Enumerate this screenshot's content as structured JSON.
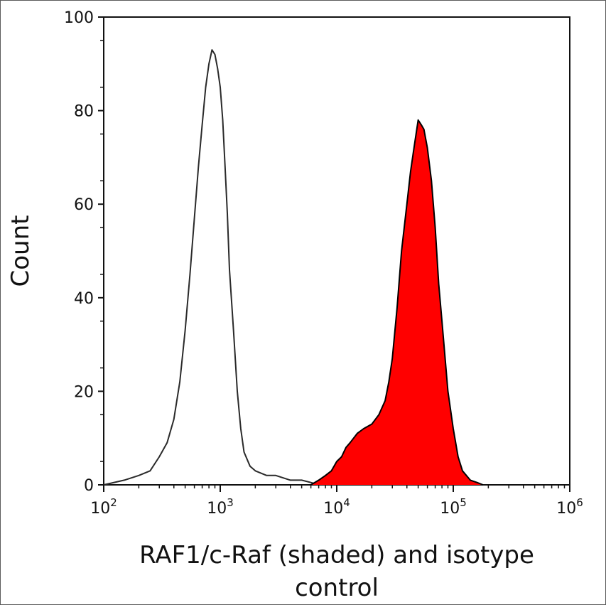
{
  "chart_data": {
    "type": "area",
    "xlabel_line1": "RAF1/c-Raf (shaded) and isotype",
    "xlabel_line2": "control",
    "ylabel": "Count",
    "x_scale": "log",
    "xlim": [
      100,
      1000000
    ],
    "ylim": [
      0,
      100
    ],
    "grid": false,
    "x_ticks": [
      {
        "value": 100,
        "base": "10",
        "exp": "2"
      },
      {
        "value": 1000,
        "base": "10",
        "exp": "3"
      },
      {
        "value": 10000,
        "base": "10",
        "exp": "4"
      },
      {
        "value": 100000,
        "base": "10",
        "exp": "5"
      },
      {
        "value": 1000000,
        "base": "10",
        "exp": "6"
      }
    ],
    "y_ticks": [
      0,
      20,
      40,
      60,
      80,
      100
    ],
    "series": [
      {
        "role": "isotype control (unshaded outline)",
        "fill": "none",
        "stroke": "#2a2a2a",
        "x": [
          100,
          150,
          200,
          250,
          300,
          350,
          400,
          450,
          500,
          550,
          600,
          650,
          700,
          750,
          800,
          850,
          900,
          950,
          1000,
          1050,
          1100,
          1150,
          1200,
          1300,
          1400,
          1500,
          1600,
          1800,
          2000,
          2500,
          3000,
          4000,
          5000,
          6000,
          7000
        ],
        "y": [
          0,
          1,
          2,
          3,
          6,
          9,
          14,
          22,
          33,
          45,
          57,
          68,
          77,
          85,
          90,
          93,
          92,
          89,
          85,
          78,
          68,
          58,
          46,
          33,
          20,
          12,
          7,
          4,
          3,
          2,
          2,
          1,
          1,
          0.5,
          0
        ]
      },
      {
        "role": "RAF1/c-Raf (shaded)",
        "fill": "#ff0000",
        "stroke": "#000000",
        "x": [
          6000,
          7000,
          8000,
          9000,
          10000,
          11000,
          12000,
          13000,
          15000,
          17000,
          20000,
          23000,
          26000,
          28000,
          30000,
          33000,
          36000,
          40000,
          43000,
          46000,
          50000,
          53000,
          56000,
          60000,
          65000,
          70000,
          75000,
          80000,
          90000,
          100000,
          110000,
          120000,
          140000,
          160000,
          180000
        ],
        "y": [
          0,
          1,
          2,
          3,
          5,
          6,
          8,
          9,
          11,
          12,
          13,
          15,
          18,
          22,
          27,
          38,
          50,
          60,
          67,
          72,
          78,
          77,
          76,
          72,
          65,
          55,
          43,
          35,
          20,
          12,
          6,
          3,
          1,
          0.5,
          0
        ]
      }
    ]
  }
}
